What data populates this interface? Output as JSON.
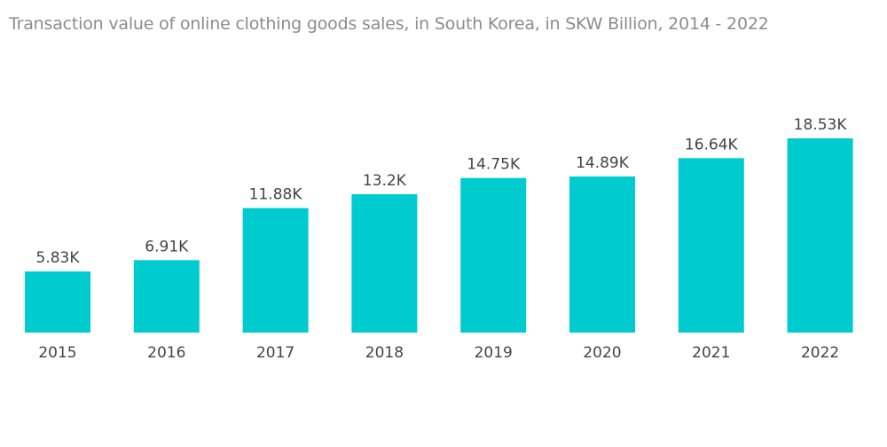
{
  "chart_data": {
    "type": "bar",
    "title": "Transaction value of online clothing goods sales, in South Korea, in SKW Billion, 2014 - 2022",
    "xlabel": "",
    "ylabel": "",
    "categories": [
      "2015",
      "2016",
      "2017",
      "2018",
      "2019",
      "2020",
      "2021",
      "2022"
    ],
    "values": [
      5.83,
      6.91,
      11.88,
      13.2,
      14.75,
      14.89,
      16.64,
      18.53
    ],
    "data_labels": [
      "5.83K",
      "6.91K",
      "11.88K",
      "13.2K",
      "14.75K",
      "14.89K",
      "16.64K",
      "18.53K"
    ],
    "ylim": [
      0,
      18.53
    ],
    "grid": false,
    "legend": "none",
    "bar_color": "#00cccf",
    "label_color": "#444444",
    "title_color": "#8c8c8c"
  }
}
